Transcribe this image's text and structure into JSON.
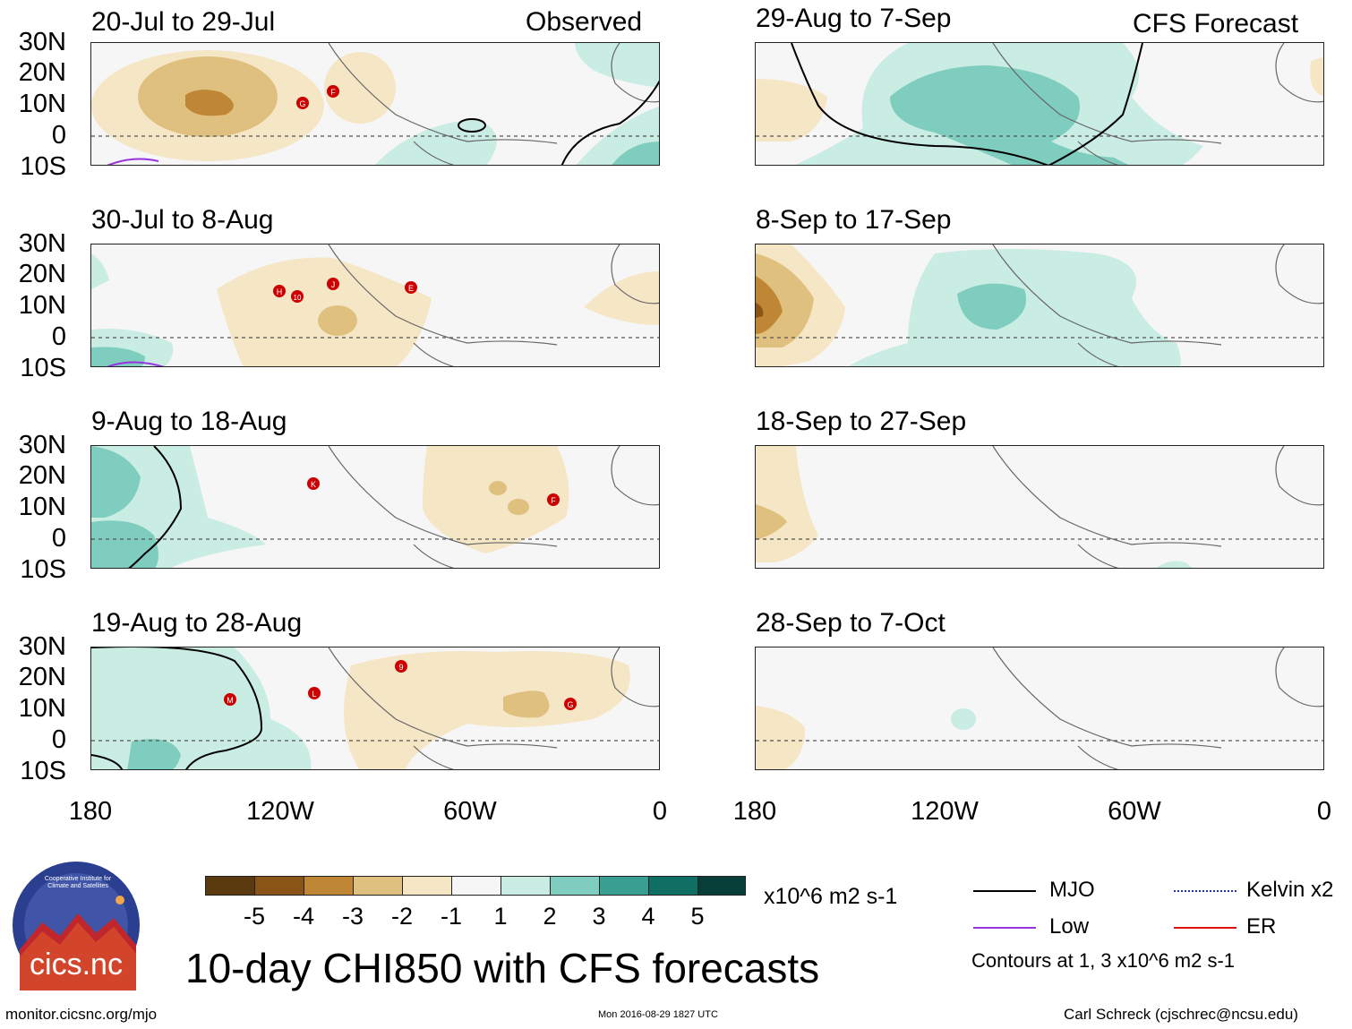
{
  "figure": {
    "title": "10-day CHI850 with CFS forecasts",
    "observed_label": "Observed",
    "forecast_label": "CFS Forecast",
    "url": "monitor.cicsnc.org/mjo",
    "timestamp": "Mon 2016-08-29 1827 UTC",
    "author": "Carl Schreck (cjschrec@ncsu.edu)",
    "logo_text": "cics.nc",
    "logo_ring_text": "Cooperative Institute for Climate and Satellites"
  },
  "axes": {
    "lat_ticks": [
      "30N",
      "20N",
      "10N",
      "0",
      "10S"
    ],
    "lon_ticks": [
      "180",
      "120W",
      "60W",
      "0"
    ]
  },
  "panels": [
    {
      "label": "20-Jul to 29-Jul",
      "kind": "observed",
      "storms": [
        "G",
        "F"
      ]
    },
    {
      "label": "30-Jul to 8-Aug",
      "kind": "observed",
      "storms": [
        "H",
        "10",
        "J",
        "E"
      ]
    },
    {
      "label": "9-Aug to 18-Aug",
      "kind": "observed",
      "storms": [
        "K",
        "F"
      ]
    },
    {
      "label": "19-Aug to 28-Aug",
      "kind": "observed",
      "storms": [
        "M",
        "L",
        "9",
        "G"
      ]
    },
    {
      "label": "29-Aug to 7-Sep",
      "kind": "forecast",
      "storms": []
    },
    {
      "label": "8-Sep to 17-Sep",
      "kind": "forecast",
      "storms": []
    },
    {
      "label": "18-Sep to 27-Sep",
      "kind": "forecast",
      "storms": []
    },
    {
      "label": "28-Sep to 7-Oct",
      "kind": "forecast",
      "storms": []
    }
  ],
  "colorbar": {
    "unit": "x10^6 m2 s-1",
    "labels": [
      "-5",
      "-4",
      "-3",
      "-2",
      "-1",
      "1",
      "2",
      "3",
      "4",
      "5"
    ],
    "colors": [
      "#5a3a0e",
      "#8b5417",
      "#bf8635",
      "#e0c07e",
      "#f5e6c6",
      "#f6f6f6",
      "#c9ece3",
      "#7fcdbf",
      "#3a9f93",
      "#0f6f64",
      "#073f38"
    ]
  },
  "legend": {
    "items": [
      {
        "label": "MJO",
        "color": "#000000"
      },
      {
        "label": "Kelvin x2",
        "color": "#2233cc"
      },
      {
        "label": "Low",
        "color": "#9933dd"
      },
      {
        "label": "ER",
        "color": "#dd1111"
      }
    ],
    "contours_note": "Contours at 1, 3 x10^6 m2 s-1"
  },
  "palette": {
    "neg1": "#f5e6c6",
    "neg2": "#e0c07e",
    "neg3": "#bf8635",
    "pos1": "#c9ece3",
    "pos2": "#7fcdbf",
    "pos3": "#3a9f93",
    "storm": "#cc0000"
  }
}
